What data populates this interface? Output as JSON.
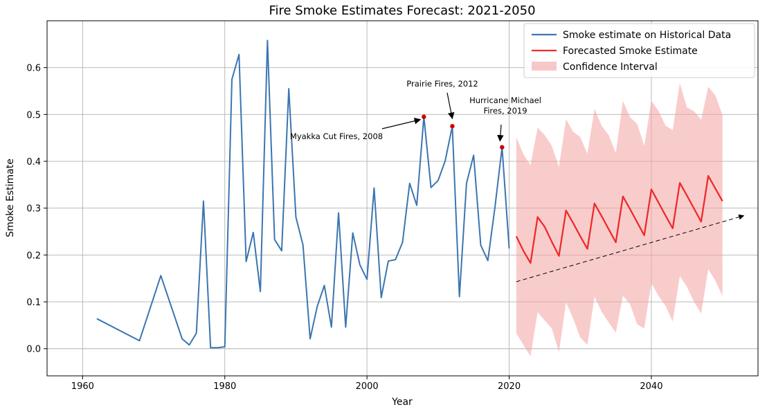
{
  "chart_data": {
    "type": "line",
    "title": "Fire Smoke Estimates Forecast: 2021-2050",
    "xlabel": "Year",
    "ylabel": "Smoke Estimate",
    "xlim": [
      1955,
      2055
    ],
    "ylim": [
      -0.058,
      0.7
    ],
    "xticks": [
      1960,
      1980,
      2000,
      2020,
      2040
    ],
    "yticks": [
      0.0,
      0.1,
      0.2,
      0.3,
      0.4,
      0.5,
      0.6
    ],
    "grid": true,
    "legend_position": "top-right",
    "series": [
      {
        "name": "Smoke estimate on Historical Data",
        "color": "#3a75b0",
        "points": [
          [
            1962,
            0.064
          ],
          [
            1968,
            0.017
          ],
          [
            1971,
            0.156
          ],
          [
            1974,
            0.021
          ],
          [
            1975,
            0.008
          ],
          [
            1976,
            0.033
          ],
          [
            1977,
            0.315
          ],
          [
            1978,
            0.002
          ],
          [
            1979,
            0.002
          ],
          [
            1980,
            0.004
          ],
          [
            1981,
            0.575
          ],
          [
            1982,
            0.628
          ],
          [
            1983,
            0.186
          ],
          [
            1984,
            0.248
          ],
          [
            1985,
            0.122
          ],
          [
            1986,
            0.658
          ],
          [
            1987,
            0.233
          ],
          [
            1988,
            0.209
          ],
          [
            1989,
            0.555
          ],
          [
            1990,
            0.281
          ],
          [
            1991,
            0.221
          ],
          [
            1992,
            0.021
          ],
          [
            1993,
            0.09
          ],
          [
            1994,
            0.135
          ],
          [
            1995,
            0.046
          ],
          [
            1996,
            0.29
          ],
          [
            1997,
            0.046
          ],
          [
            1998,
            0.247
          ],
          [
            1999,
            0.179
          ],
          [
            2000,
            0.148
          ],
          [
            2001,
            0.343
          ],
          [
            2002,
            0.109
          ],
          [
            2003,
            0.187
          ],
          [
            2004,
            0.19
          ],
          [
            2005,
            0.227
          ],
          [
            2006,
            0.353
          ],
          [
            2007,
            0.306
          ],
          [
            2008,
            0.495
          ],
          [
            2009,
            0.344
          ],
          [
            2010,
            0.359
          ],
          [
            2011,
            0.401
          ],
          [
            2012,
            0.475
          ],
          [
            2013,
            0.111
          ],
          [
            2014,
            0.353
          ],
          [
            2015,
            0.413
          ],
          [
            2016,
            0.221
          ],
          [
            2017,
            0.188
          ],
          [
            2018,
            0.302
          ],
          [
            2019,
            0.43
          ],
          [
            2020,
            0.214
          ]
        ]
      },
      {
        "name": "Forecasted Smoke Estimate",
        "color": "#ee2a2a",
        "points": [
          [
            2021,
            0.24
          ],
          [
            2022,
            0.209
          ],
          [
            2023,
            0.183
          ],
          [
            2024,
            0.281
          ],
          [
            2025,
            0.26
          ],
          [
            2026,
            0.228
          ],
          [
            2027,
            0.198
          ],
          [
            2028,
            0.295
          ],
          [
            2029,
            0.268
          ],
          [
            2030,
            0.24
          ],
          [
            2031,
            0.213
          ],
          [
            2032,
            0.31
          ],
          [
            2033,
            0.283
          ],
          [
            2034,
            0.255
          ],
          [
            2035,
            0.227
          ],
          [
            2036,
            0.325
          ],
          [
            2037,
            0.298
          ],
          [
            2038,
            0.27
          ],
          [
            2039,
            0.242
          ],
          [
            2040,
            0.34
          ],
          [
            2041,
            0.312
          ],
          [
            2042,
            0.284
          ],
          [
            2043,
            0.257
          ],
          [
            2044,
            0.354
          ],
          [
            2045,
            0.327
          ],
          [
            2046,
            0.299
          ],
          [
            2047,
            0.271
          ],
          [
            2048,
            0.369
          ],
          [
            2049,
            0.342
          ],
          [
            2050,
            0.315
          ]
        ]
      }
    ],
    "confidence_interval": {
      "name": "Confidence Interval",
      "color": "#f4a3a3",
      "x": [
        2021,
        2022,
        2023,
        2024,
        2025,
        2026,
        2027,
        2028,
        2029,
        2030,
        2031,
        2032,
        2033,
        2034,
        2035,
        2036,
        2037,
        2038,
        2039,
        2040,
        2041,
        2042,
        2043,
        2044,
        2045,
        2046,
        2047,
        2048,
        2049,
        2050
      ],
      "upper": [
        0.452,
        0.415,
        0.392,
        0.472,
        0.456,
        0.433,
        0.388,
        0.49,
        0.463,
        0.452,
        0.416,
        0.512,
        0.476,
        0.456,
        0.418,
        0.529,
        0.494,
        0.48,
        0.433,
        0.529,
        0.508,
        0.476,
        0.467,
        0.567,
        0.515,
        0.507,
        0.489,
        0.559,
        0.541,
        0.499
      ],
      "lower": [
        0.033,
        0.008,
        -0.016,
        0.078,
        0.06,
        0.043,
        -0.008,
        0.099,
        0.064,
        0.024,
        0.008,
        0.111,
        0.079,
        0.056,
        0.034,
        0.113,
        0.095,
        0.052,
        0.043,
        0.14,
        0.113,
        0.091,
        0.058,
        0.155,
        0.132,
        0.1,
        0.075,
        0.17,
        0.145,
        0.112
      ]
    },
    "trend_arrow": {
      "from": [
        2021,
        0.143
      ],
      "to": [
        2053,
        0.284
      ]
    },
    "annotations": [
      {
        "id": "myakka",
        "lines": [
          "Myakka Cut Fires, 2008"
        ],
        "point": [
          2008,
          0.495
        ]
      },
      {
        "id": "prairie",
        "lines": [
          "Prairie Fires, 2012"
        ],
        "point": [
          2012,
          0.475
        ]
      },
      {
        "id": "michael",
        "lines": [
          "Hurricane Michael",
          "Fires, 2019"
        ],
        "point": [
          2019,
          0.43
        ]
      }
    ]
  }
}
